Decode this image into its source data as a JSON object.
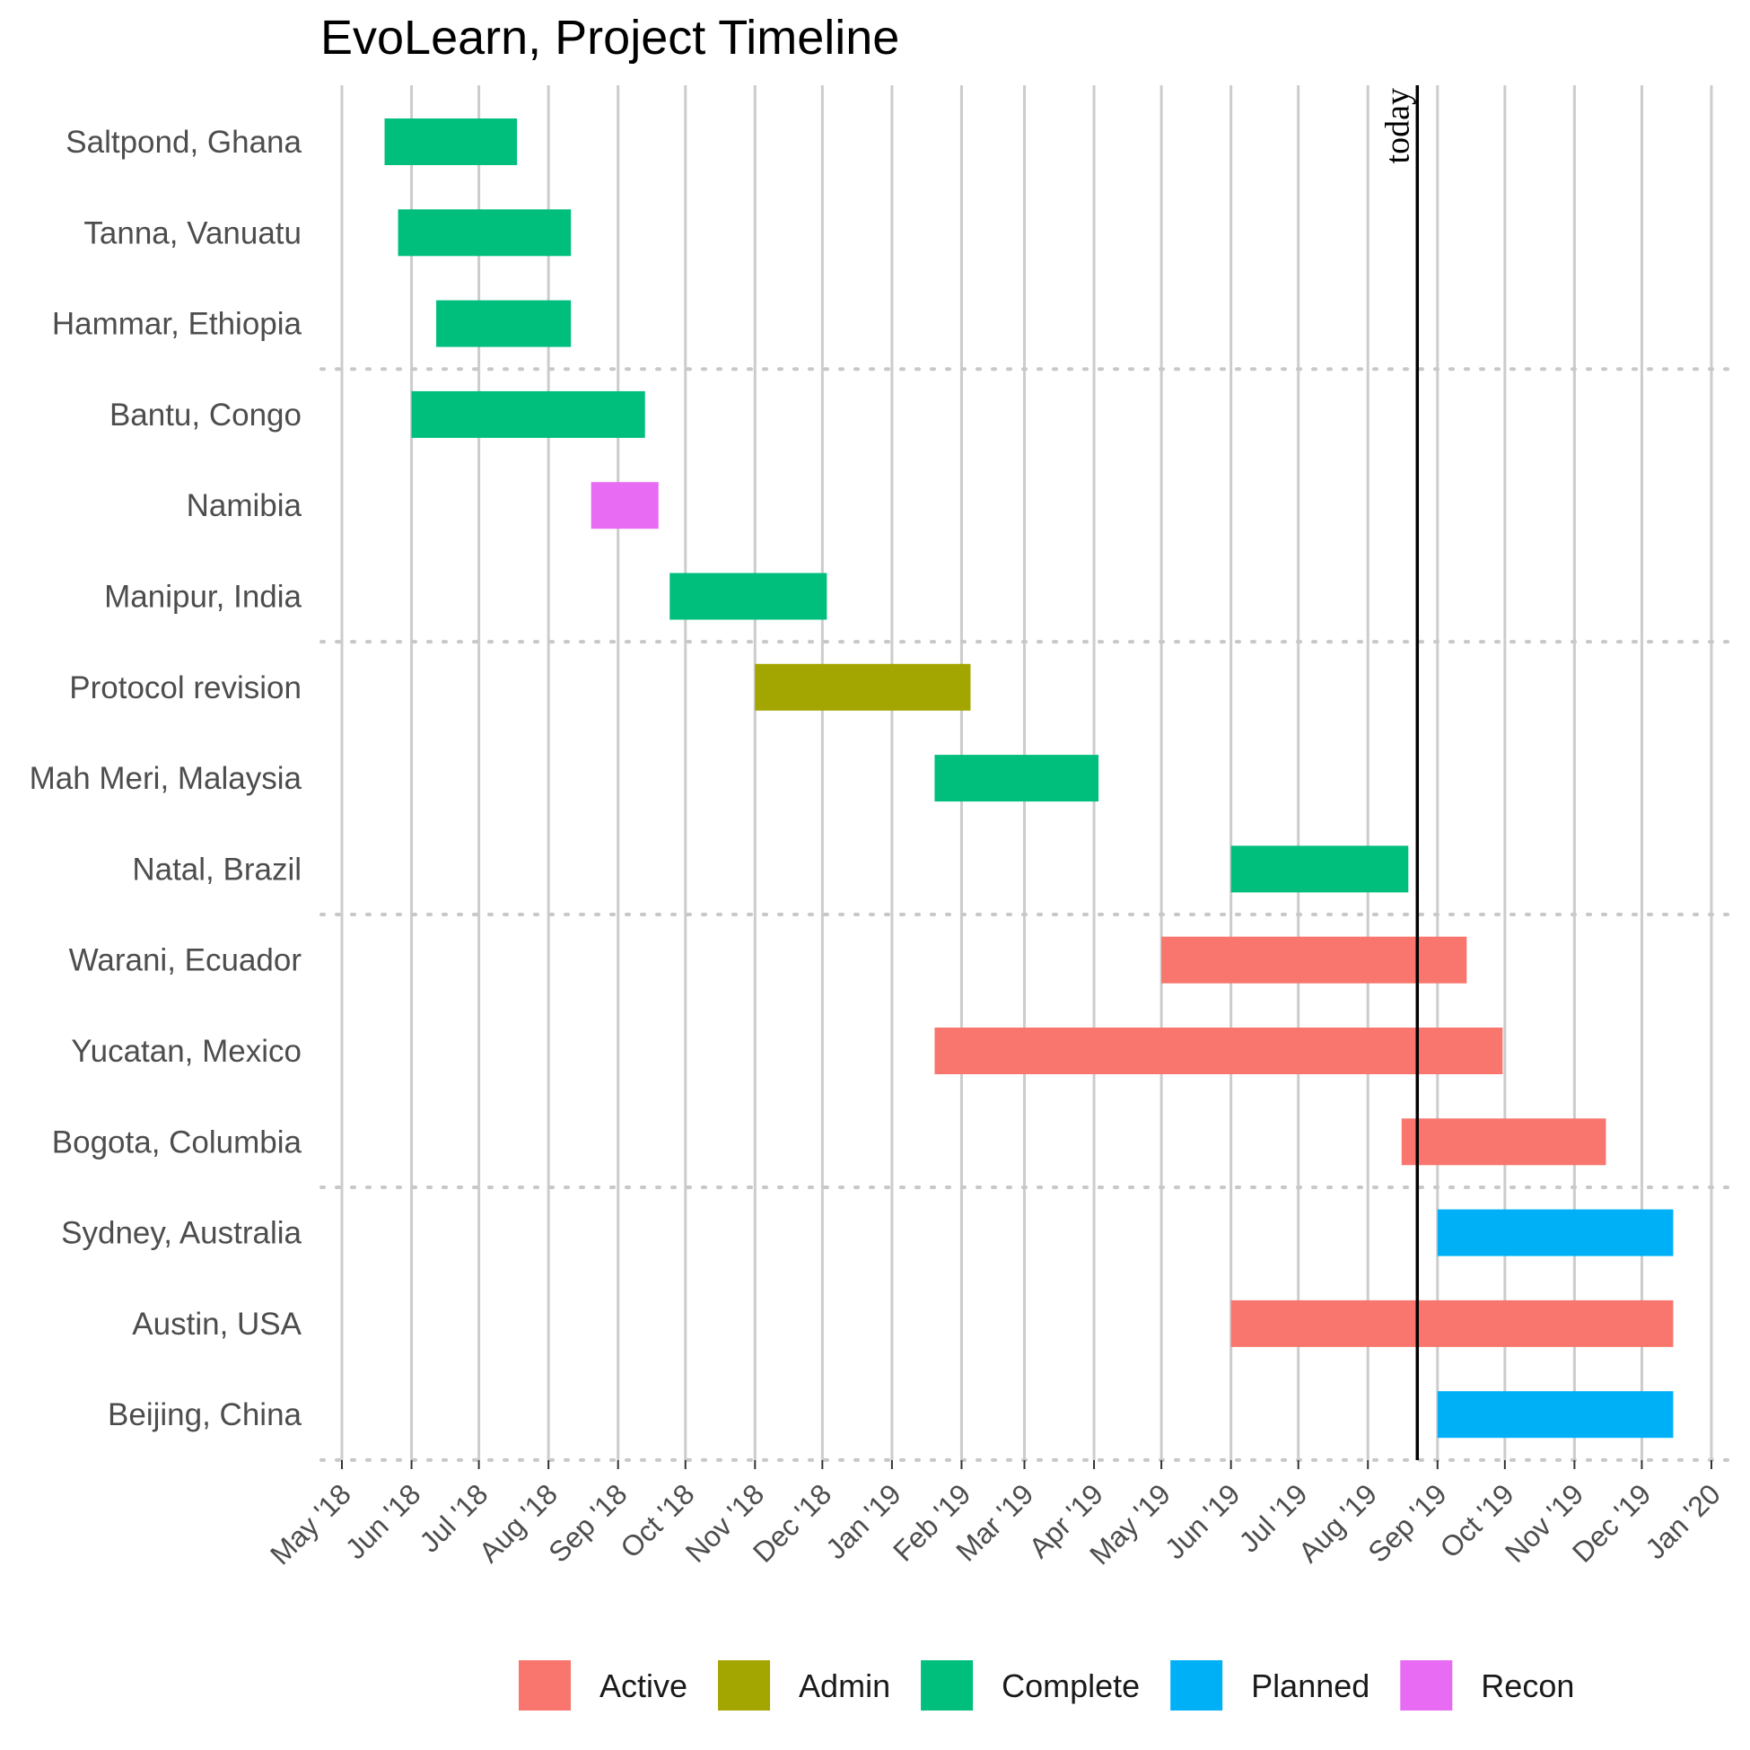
{
  "chart_data": {
    "type": "gantt",
    "title": "EvoLearn, Project Timeline",
    "xlabel": "",
    "ylabel": "",
    "x_ticks": [
      "May '18",
      "Jun '18",
      "Jul '18",
      "Aug '18",
      "Sep '18",
      "Oct '18",
      "Nov '18",
      "Dec '18",
      "Jan '19",
      "Feb '19",
      "Mar '19",
      "Apr '19",
      "May '19",
      "Jun '19",
      "Jul '19",
      "Aug '19",
      "Sep '19",
      "Oct '19",
      "Nov '19",
      "Dec '19",
      "Jan '20"
    ],
    "x_range": [
      "2018-05-01",
      "2020-01-01"
    ],
    "grid": "vertical major gridlines at month ticks; dotted horizontal separators between groups",
    "today": {
      "label": "today",
      "date": "2019-08-23"
    },
    "tasks": [
      {
        "name": "Saltpond, Ghana",
        "start": "2018-05-20",
        "end": "2018-07-18",
        "status": "Complete"
      },
      {
        "name": "Tanna, Vanuatu",
        "start": "2018-05-26",
        "end": "2018-08-11",
        "status": "Complete"
      },
      {
        "name": "Hammar, Ethiopia",
        "start": "2018-06-12",
        "end": "2018-08-11",
        "status": "Complete"
      },
      {
        "name": "Bantu, Congo",
        "start": "2018-06-01",
        "end": "2018-09-13",
        "status": "Complete"
      },
      {
        "name": "Namibia",
        "start": "2018-08-20",
        "end": "2018-09-19",
        "status": "Recon"
      },
      {
        "name": "Manipur, India",
        "start": "2018-09-24",
        "end": "2018-12-03",
        "status": "Complete"
      },
      {
        "name": "Protocol revision",
        "start": "2018-11-01",
        "end": "2019-02-05",
        "status": "Admin"
      },
      {
        "name": "Mah Meri, Malaysia",
        "start": "2019-01-20",
        "end": "2019-04-03",
        "status": "Complete"
      },
      {
        "name": "Natal, Brazil",
        "start": "2019-06-01",
        "end": "2019-08-19",
        "status": "Complete"
      },
      {
        "name": "Warani, Ecuador",
        "start": "2019-05-01",
        "end": "2019-09-14",
        "status": "Active"
      },
      {
        "name": "Yucatan, Mexico",
        "start": "2019-01-20",
        "end": "2019-09-30",
        "status": "Active"
      },
      {
        "name": "Bogota, Columbia",
        "start": "2019-08-16",
        "end": "2019-11-15",
        "status": "Active"
      },
      {
        "name": "Sydney, Australia",
        "start": "2019-09-01",
        "end": "2019-12-15",
        "status": "Planned"
      },
      {
        "name": "Austin, USA",
        "start": "2019-06-01",
        "end": "2019-12-15",
        "status": "Active"
      },
      {
        "name": "Beijing, China",
        "start": "2019-09-01",
        "end": "2019-12-15",
        "status": "Planned"
      }
    ],
    "group_separators_after": [
      3,
      6,
      9,
      12,
      15
    ],
    "legend": {
      "placement": "bottom",
      "items": [
        {
          "label": "Active",
          "color": "#F8766D"
        },
        {
          "label": "Admin",
          "color": "#A3A500"
        },
        {
          "label": "Complete",
          "color": "#00BF7D"
        },
        {
          "label": "Planned",
          "color": "#00B0F6"
        },
        {
          "label": "Recon",
          "color": "#E76BF3"
        }
      ]
    }
  }
}
